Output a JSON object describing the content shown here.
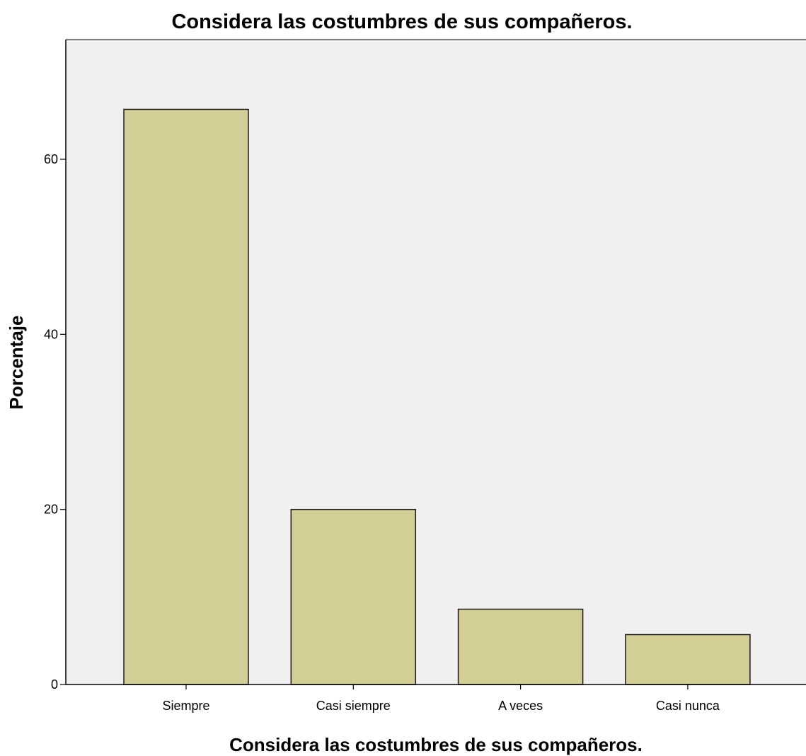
{
  "chart_data": {
    "type": "bar",
    "title": "Considera las costumbres de sus compañeros.",
    "xlabel": "Considera las costumbres de sus compañeros.",
    "ylabel": "Porcentaje",
    "categories": [
      "Siempre",
      "Casi siempre",
      "A veces",
      "Casi nunca"
    ],
    "values": [
      65.7,
      20.0,
      8.6,
      5.7
    ],
    "ylim": [
      0,
      73
    ],
    "yticks": [
      0,
      20,
      40,
      60
    ],
    "ytick_labels": [
      "0",
      "20",
      "40",
      "60"
    ],
    "grid": false,
    "legend": "none",
    "colors": {
      "bar_fill": "#d3cd96",
      "bar_stroke": "#1a1a1a",
      "plot_background": "#f0f0f0",
      "axis": "#000000"
    }
  }
}
